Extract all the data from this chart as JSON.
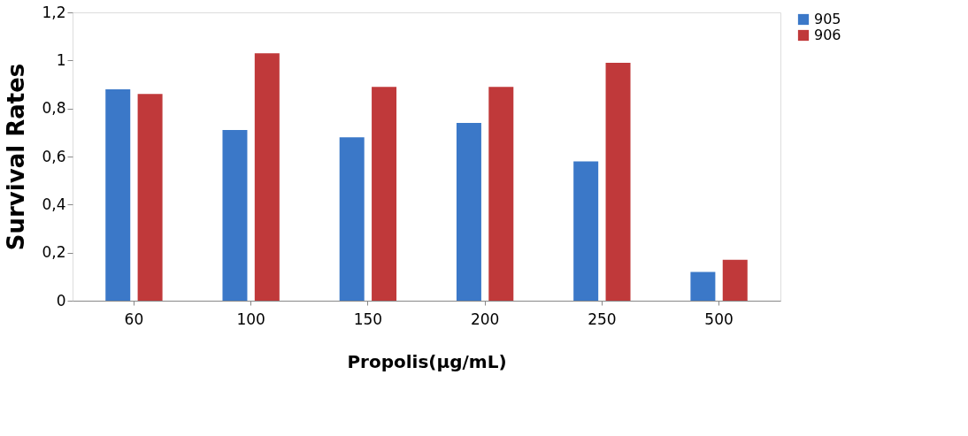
{
  "chart_data": {
    "type": "bar",
    "xlabel": "Propolis(µg/mL)",
    "ylabel": "Survival Rates",
    "categories": [
      "60",
      "100",
      "150",
      "200",
      "250",
      "500"
    ],
    "series": [
      {
        "name": "905",
        "color": "#3b78c8",
        "values": [
          0.88,
          0.71,
          0.68,
          0.74,
          0.58,
          0.12
        ]
      },
      {
        "name": "906",
        "color": "#c0393a",
        "values": [
          0.86,
          1.03,
          0.89,
          0.89,
          0.99,
          0.17
        ]
      }
    ],
    "ylim": [
      0,
      1.2
    ],
    "yticks": [
      {
        "value": 0,
        "label": "0"
      },
      {
        "value": 0.2,
        "label": "0,2"
      },
      {
        "value": 0.4,
        "label": "0,4"
      },
      {
        "value": 0.6,
        "label": "0,6"
      },
      {
        "value": 0.8,
        "label": "0,8"
      },
      {
        "value": 1,
        "label": "1"
      },
      {
        "value": 1.2,
        "label": "1,2"
      }
    ],
    "grid": false,
    "legend": "right"
  }
}
